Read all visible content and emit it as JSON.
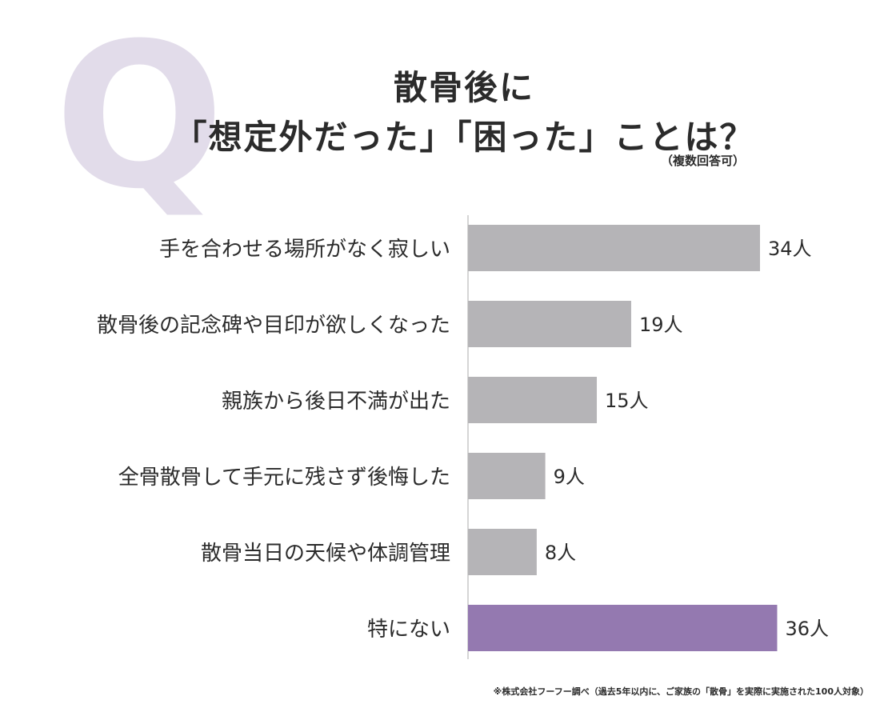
{
  "q_mark": "Q",
  "title": {
    "line1": "散骨後に",
    "line2": "「想定外だった」「困った」ことは？",
    "note": "（複数回答可）"
  },
  "footnote": "※株式会社フーフー調べ（過去5年以内に、ご家族の「散骨」を実際に実施された100人対象）",
  "colors": {
    "bar_default": "#b5b4b7",
    "bar_highlight": "#9479b0",
    "q_mark": "#e2dcea",
    "axis": "#c9c9c9",
    "text": "#2b2b2b"
  },
  "chart_data": {
    "type": "bar",
    "orientation": "horizontal",
    "categories": [
      "手を合わせる場所がなく寂しい",
      "散骨後の記念碑や目印が欲しくなった",
      "親族から後日不満が出た",
      "全骨散骨して手元に残さず後悔した",
      "散骨当日の天候や体調管理",
      "特にない"
    ],
    "values": [
      34,
      19,
      15,
      9,
      8,
      36
    ],
    "value_labels": [
      "34人",
      "19人",
      "15人",
      "9人",
      "8人",
      "36人"
    ],
    "highlight_index": 5,
    "xlim": [
      0,
      36
    ],
    "grid": false,
    "legend": "none"
  }
}
